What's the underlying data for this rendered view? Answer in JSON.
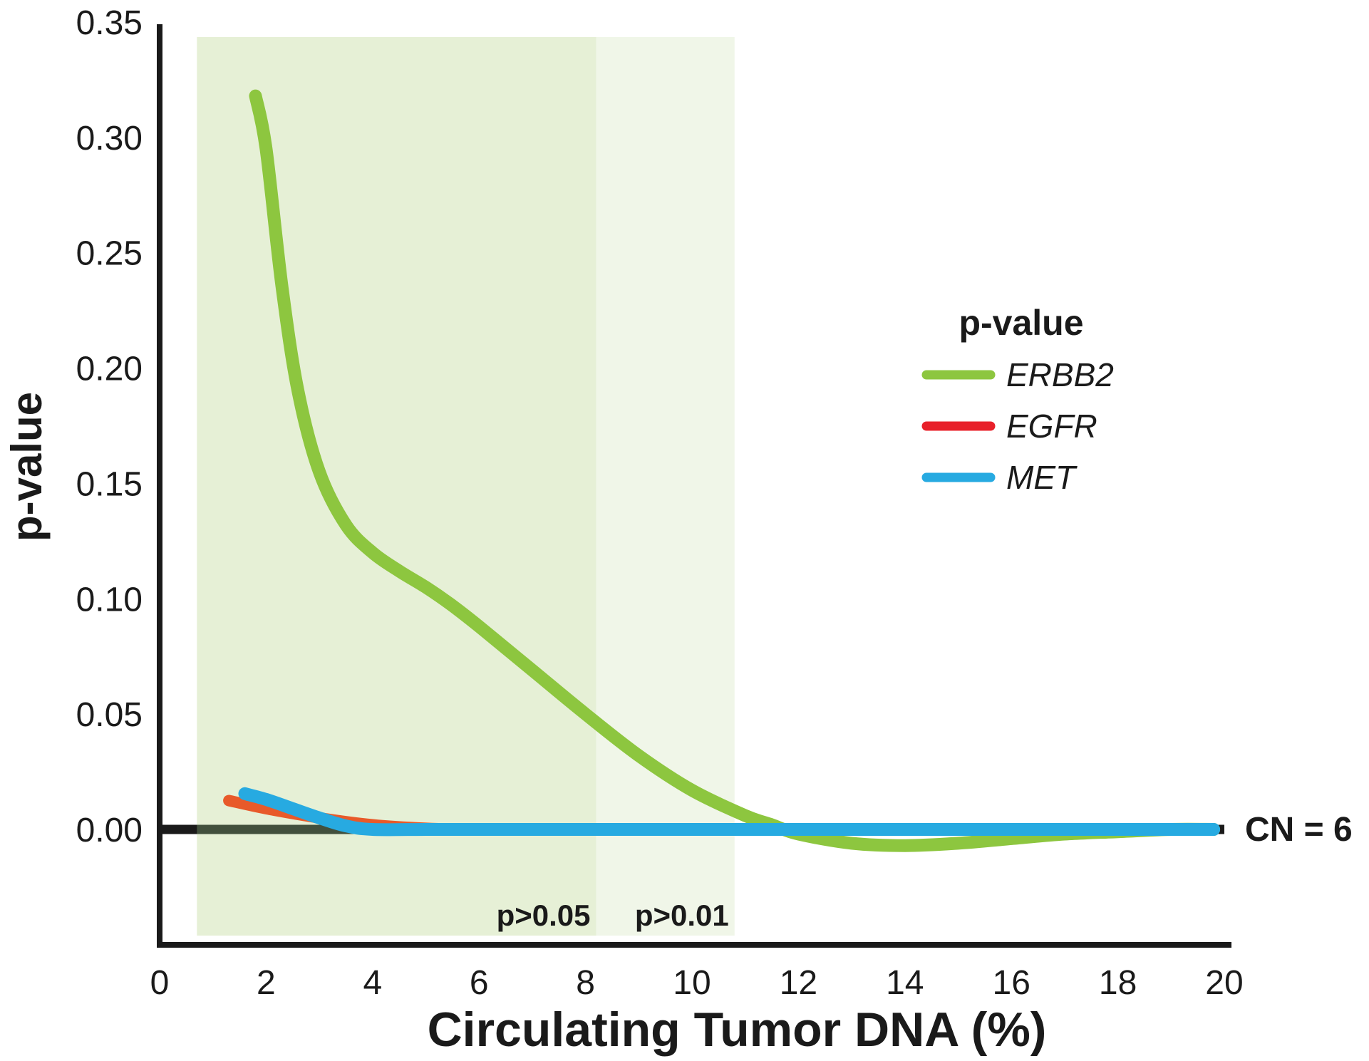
{
  "chart_data": {
    "type": "line",
    "title": "",
    "xlabel": "Circulating Tumor DNA (%)",
    "ylabel": "p-value",
    "xlim": [
      0,
      20
    ],
    "ylim": [
      -0.0475,
      0.35
    ],
    "x_ticks": [
      0,
      2,
      4,
      6,
      8,
      10,
      12,
      14,
      16,
      18,
      20
    ],
    "y_ticks": [
      0.0,
      0.05,
      0.1,
      0.15,
      0.2,
      0.25,
      0.3,
      0.35
    ],
    "x_tick_labels": [
      "0",
      "2",
      "4",
      "6",
      "8",
      "10",
      "12",
      "14",
      "16",
      "18",
      "20"
    ],
    "y_tick_labels": [
      "0.00",
      "0.05",
      "0.10",
      "0.15",
      "0.20",
      "0.25",
      "0.30",
      "0.35"
    ],
    "grid": false,
    "legend_title": "p-value",
    "legend_position": "right",
    "regions": [
      {
        "label": "p>0.05",
        "x": [
          0.7,
          8.2
        ],
        "color": "#e6f0d6"
      },
      {
        "label": "p>0.01",
        "x": [
          8.2,
          10.8
        ],
        "color": "#f0f6e8"
      }
    ],
    "reference_line": {
      "label": "CN = 6",
      "y": 0.0
    },
    "series": [
      {
        "name": "ERBB2",
        "color": "#8dc63f",
        "x": [
          1.8,
          2.0,
          2.3,
          2.6,
          3.0,
          3.5,
          4.0,
          4.5,
          5.0,
          5.5,
          6.0,
          7.0,
          8.0,
          9.0,
          10.0,
          11.0,
          11.5,
          12.0,
          13.0,
          14.0,
          15.0,
          16.0,
          17.0,
          18.0,
          19.0,
          19.8
        ],
        "values": [
          0.318,
          0.295,
          0.235,
          0.19,
          0.155,
          0.132,
          0.12,
          0.112,
          0.105,
          0.097,
          0.088,
          0.069,
          0.05,
          0.032,
          0.017,
          0.006,
          0.002,
          -0.002,
          -0.006,
          -0.007,
          -0.006,
          -0.004,
          -0.002,
          -0.001,
          0.0,
          0.0
        ],
        "line_width": 18
      },
      {
        "name": "EGFR",
        "color": "#e8202a",
        "x": [
          1.3,
          2.0,
          3.0,
          4.0,
          5.0,
          6.0,
          8.0,
          10.0,
          12.0,
          14.0,
          16.0,
          18.0,
          19.8
        ],
        "values": [
          0.0125,
          0.009,
          0.005,
          0.002,
          0.0005,
          0.0,
          0.0,
          0.0,
          0.0,
          0.0,
          0.0,
          0.0,
          0.0
        ],
        "line_width": 16
      },
      {
        "name": "MET",
        "color": "#27aae1",
        "x": [
          1.6,
          2.0,
          2.5,
          3.0,
          3.5,
          4.0,
          5.0,
          6.0,
          8.0,
          10.0,
          12.0,
          14.0,
          16.0,
          18.0,
          19.8
        ],
        "values": [
          0.0155,
          0.013,
          0.009,
          0.005,
          0.0015,
          0.0,
          0.0,
          0.0,
          0.0,
          0.0,
          0.0,
          0.0,
          0.0,
          0.0,
          0.0
        ],
        "line_width": 18
      }
    ]
  }
}
